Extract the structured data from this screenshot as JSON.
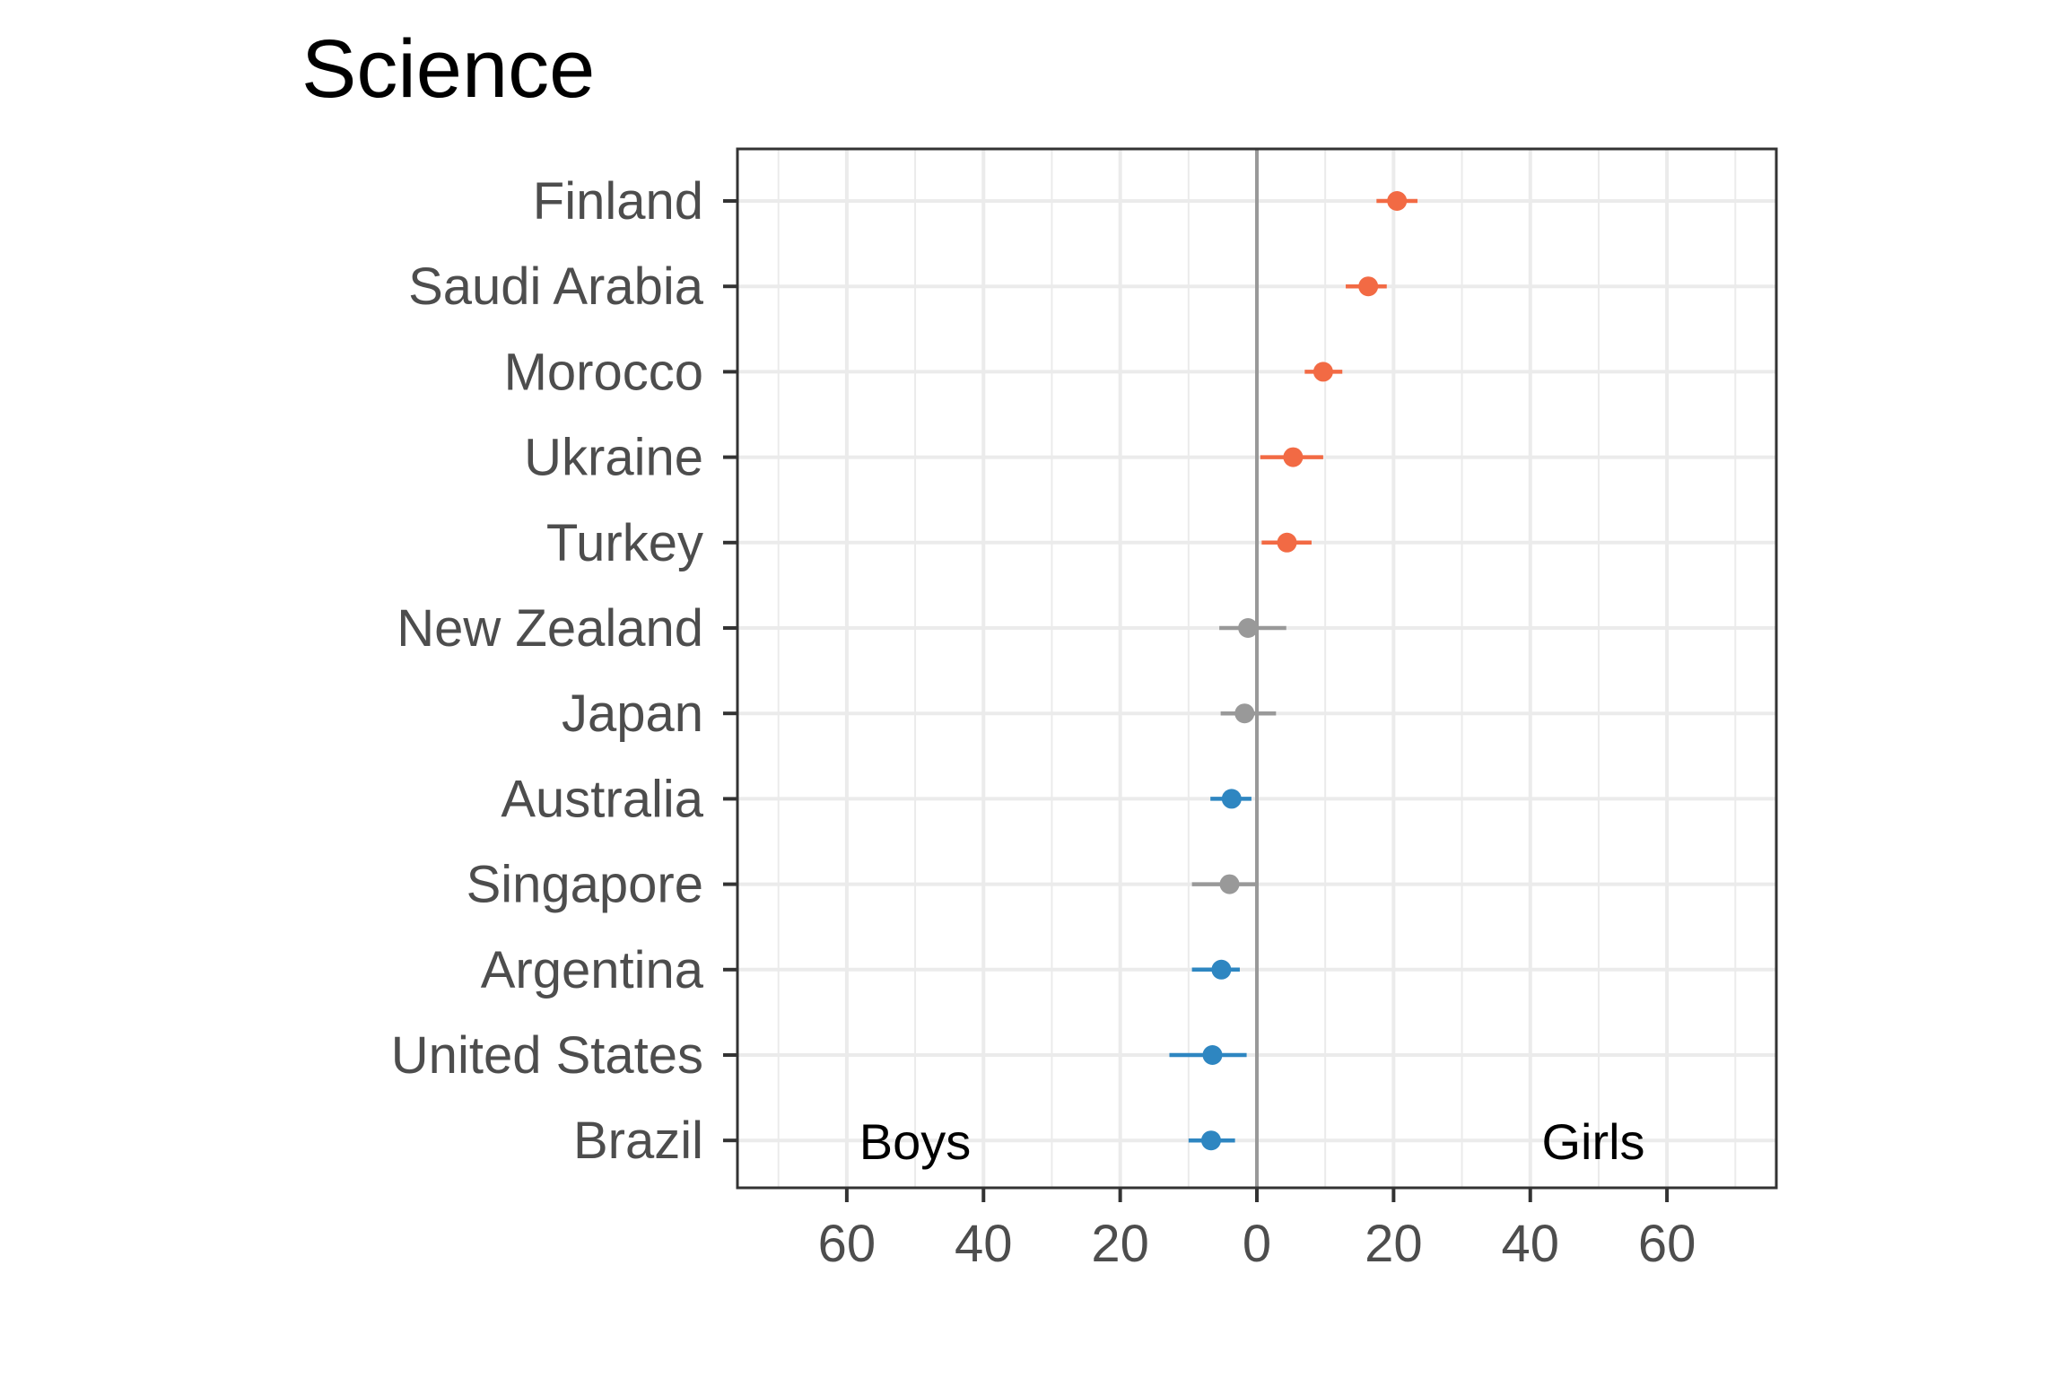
{
  "chart_data": {
    "type": "dot-errorbar",
    "title": "Science",
    "xlabel": "",
    "ylabel": "",
    "xlim": [
      -76,
      76
    ],
    "x_ticks": [
      -60,
      -40,
      -20,
      0,
      20,
      40,
      60
    ],
    "x_tick_labels": [
      "60",
      "40",
      "20",
      "0",
      "20",
      "40",
      "60"
    ],
    "annotations": {
      "left": "Boys",
      "right": "Girls"
    },
    "grid": true,
    "colors": {
      "girls": "#f26a44",
      "neutral": "#999999",
      "boys": "#2e86c1",
      "zero_line": "#999999",
      "grid": "#ebebeb",
      "axis": "#333333"
    },
    "categories": [
      "Finland",
      "Saudi Arabia",
      "Morocco",
      "Ukraine",
      "Turkey",
      "New Zealand",
      "Japan",
      "Australia",
      "Singapore",
      "Argentina",
      "United States",
      "Brazil"
    ],
    "points": [
      {
        "country": "Finland",
        "value": 20.5,
        "low": 17.5,
        "high": 23.5,
        "group": "girls"
      },
      {
        "country": "Saudi Arabia",
        "value": 16.3,
        "low": 13,
        "high": 19,
        "group": "girls"
      },
      {
        "country": "Morocco",
        "value": 9.7,
        "low": 7,
        "high": 12.5,
        "group": "girls"
      },
      {
        "country": "Ukraine",
        "value": 5.3,
        "low": 0.5,
        "high": 9.7,
        "group": "girls"
      },
      {
        "country": "Turkey",
        "value": 4.4,
        "low": 0.7,
        "high": 8,
        "group": "girls"
      },
      {
        "country": "New Zealand",
        "value": -1.3,
        "low": -5.5,
        "high": 4.3,
        "group": "neutral"
      },
      {
        "country": "Japan",
        "value": -1.8,
        "low": -5.3,
        "high": 2.8,
        "group": "neutral"
      },
      {
        "country": "Australia",
        "value": -3.7,
        "low": -6.8,
        "high": -0.8,
        "group": "boys"
      },
      {
        "country": "Singapore",
        "value": -4.0,
        "low": -9.5,
        "high": 0,
        "group": "neutral"
      },
      {
        "country": "Argentina",
        "value": -5.2,
        "low": -9.5,
        "high": -2.5,
        "group": "boys"
      },
      {
        "country": "United States",
        "value": -6.5,
        "low": -12.8,
        "high": -1.5,
        "group": "boys"
      },
      {
        "country": "Brazil",
        "value": -6.7,
        "low": -10,
        "high": -3.2,
        "group": "boys"
      }
    ]
  }
}
